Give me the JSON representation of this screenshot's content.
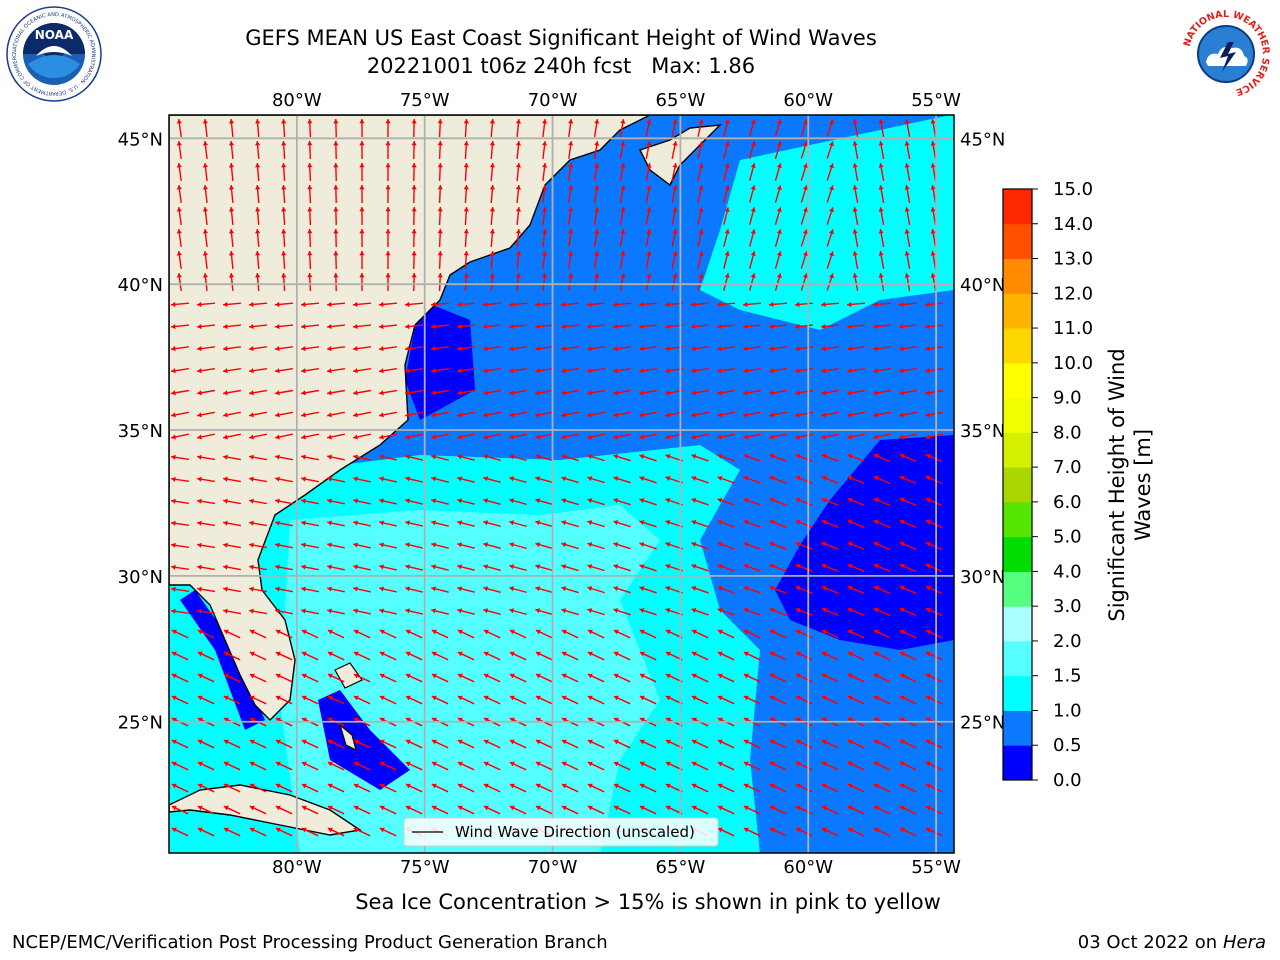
{
  "header": {
    "title_line1": "GEFS MEAN US East Coast Significant Height of Wind Waves",
    "title_line2": "20221001 t06z 240h fcst   Max: 1.86"
  },
  "logos": {
    "left": {
      "name": "NOAA",
      "text": "NOAA",
      "ring_text": "NATIONAL OCEANIC AND ATMOSPHERIC ADMINISTRATION · U.S. DEPARTMENT OF COMMERCE"
    },
    "right": {
      "name": "National Weather Service",
      "ring_text": "NATIONAL WEATHER SERVICE"
    }
  },
  "map": {
    "lon_labels": [
      "80°W",
      "75°W",
      "70°W",
      "65°W",
      "60°W",
      "55°W"
    ],
    "lon_values": [
      -80,
      -75,
      -70,
      -65,
      -60,
      -55
    ],
    "lat_labels": [
      "45°N",
      "40°N",
      "35°N",
      "30°N",
      "25°N"
    ],
    "lat_values": [
      45,
      40,
      35,
      30,
      25
    ],
    "extent": {
      "lon_min": -85,
      "lon_max": -54.3,
      "lat_min": 20.5,
      "lat_max": 45.8
    },
    "legend_label": "Wind Wave Direction (unscaled)",
    "colors": {
      "land": "#efecdc",
      "grid": "#b0b0b0",
      "arrow": "#ff0000",
      "coast": "#000000"
    }
  },
  "colorbar": {
    "label_line1": "Significant Height of Wind",
    "label_line2": "Waves [m]",
    "tick_labels": [
      "0.0",
      "0.5",
      "1.0",
      "1.5",
      "2.0",
      "3.0",
      "4.0",
      "5.0",
      "6.0",
      "7.0",
      "8.0",
      "9.0",
      "10.0",
      "11.0",
      "12.0",
      "13.0",
      "14.0",
      "15.0"
    ],
    "colors": [
      "#0000ff",
      "#0a78ff",
      "#00ffff",
      "#55ffff",
      "#aaffff",
      "#55ff7f",
      "#00dd00",
      "#55e600",
      "#aad700",
      "#d2f000",
      "#f0ff00",
      "#ffff00",
      "#ffd700",
      "#ffb400",
      "#ff8c00",
      "#ff5000",
      "#ff2800"
    ]
  },
  "subtitle": "Sea Ice Concentration > 15% is shown in pink to yellow",
  "footer": {
    "left": "NCEP/EMC/Verification Post Processing Product Generation Branch",
    "right_prefix": "03 Oct 2022 on ",
    "right_host": "Hera"
  }
}
